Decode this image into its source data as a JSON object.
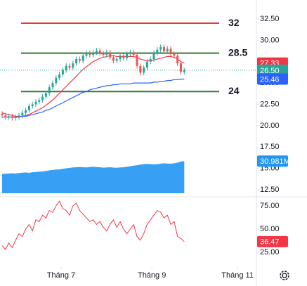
{
  "chart_data": [
    {
      "type": "candlestick",
      "xlim": [
        -0.625,
        75.4
      ],
      "ylim": [
        12.09,
        34.72
      ],
      "yticks": [
        {
          "value": 12.5,
          "label": "12.50"
        },
        {
          "value": 15,
          "label": "15.00"
        },
        {
          "value": 17.5,
          "label": "17.50"
        },
        {
          "value": 20,
          "label": "20.00"
        },
        {
          "value": 22.5,
          "label": "22.50"
        },
        {
          "value": 25,
          "label": "25.00"
        },
        {
          "value": 27.5,
          "label": "27.50"
        },
        {
          "value": 30,
          "label": "30.00"
        },
        {
          "value": 32.5,
          "label": "32.50"
        },
        {
          "value": 35,
          "label": "35.00"
        }
      ],
      "up_color": "#26a69a",
      "down_color": "#ef5350",
      "open": [
        21.4,
        21.2,
        21.0,
        21.1,
        20.9,
        21.0,
        21.2,
        21.5,
        21.8,
        22.3,
        22.5,
        22.8,
        23.0,
        23.4,
        23.8,
        24.5,
        25.0,
        25.6,
        26.0,
        26.5,
        27.0,
        26.8,
        27.3,
        27.8,
        27.6,
        28.2,
        28.5,
        28.3,
        28.6,
        28.8,
        28.5,
        28.3,
        28.6,
        28.0,
        27.6,
        27.8,
        28.2,
        27.9,
        28.4,
        28.6,
        28.3,
        27.0,
        26.2,
        26.8,
        27.5,
        27.8,
        28.5,
        28.9,
        29.2,
        28.7,
        29.0,
        28.4,
        28.2,
        27.3,
        26.3
      ],
      "high": [
        21.7,
        21.5,
        21.4,
        21.4,
        21.3,
        21.5,
        21.8,
        22.1,
        22.6,
        22.8,
        23.1,
        23.3,
        23.7,
        24.1,
        24.8,
        25.3,
        25.9,
        26.3,
        26.8,
        27.3,
        27.3,
        27.6,
        28.1,
        28.1,
        28.5,
        28.8,
        28.8,
        28.9,
        29.1,
        29.1,
        28.8,
        28.9,
        28.9,
        28.3,
        28.1,
        28.5,
        28.5,
        28.7,
        28.9,
        28.9,
        28.6,
        27.3,
        27.1,
        27.8,
        28.1,
        28.8,
        29.2,
        29.5,
        29.5,
        29.3,
        29.3,
        28.7,
        28.5,
        27.6,
        26.8
      ],
      "low": [
        20.9,
        20.7,
        20.7,
        20.6,
        20.6,
        20.7,
        20.9,
        21.2,
        21.5,
        22.0,
        22.2,
        22.5,
        22.7,
        23.1,
        23.5,
        24.2,
        24.7,
        25.3,
        25.7,
        26.2,
        26.5,
        26.5,
        27.0,
        27.3,
        27.3,
        27.9,
        28.0,
        28.0,
        28.3,
        28.2,
        28.0,
        28.0,
        27.7,
        27.3,
        27.3,
        27.5,
        27.6,
        27.6,
        28.1,
        28.0,
        26.7,
        25.9,
        25.9,
        26.5,
        27.2,
        27.5,
        28.2,
        28.6,
        28.4,
        28.4,
        28.1,
        27.9,
        27.0,
        26.0,
        26.0
      ],
      "close": [
        21.2,
        21.0,
        21.1,
        20.9,
        21.0,
        21.2,
        21.5,
        21.8,
        22.3,
        22.5,
        22.8,
        23.0,
        23.4,
        23.8,
        24.5,
        25.0,
        25.6,
        26.0,
        26.5,
        27.0,
        26.8,
        27.3,
        27.8,
        27.6,
        28.2,
        28.5,
        28.3,
        28.6,
        28.8,
        28.5,
        28.3,
        28.6,
        28.0,
        27.6,
        27.8,
        28.2,
        27.9,
        28.4,
        28.6,
        28.3,
        27.0,
        26.2,
        26.8,
        27.5,
        27.8,
        28.5,
        28.9,
        29.2,
        28.7,
        29.0,
        28.4,
        28.2,
        27.3,
        26.3,
        26.5
      ],
      "close_label": "26.50",
      "overlays": [
        {
          "color": "#f23645",
          "values": [
            21.5,
            21.4,
            21.3,
            21.2,
            21.1,
            21.1,
            21.1,
            21.2,
            21.3,
            21.5,
            21.7,
            21.9,
            22.1,
            22.4,
            22.7,
            23.0,
            23.4,
            23.8,
            24.2,
            24.6,
            25.0,
            25.4,
            25.8,
            26.2,
            26.6,
            26.9,
            27.2,
            27.5,
            27.7,
            27.9,
            28.0,
            28.1,
            28.2,
            28.2,
            28.1,
            28.1,
            28.1,
            28.1,
            28.1,
            28.1,
            28.0,
            27.8,
            27.7,
            27.6,
            27.6,
            27.7,
            27.8,
            27.9,
            28.0,
            28.1,
            28.1,
            28.0,
            27.8,
            27.5,
            27.33
          ]
        },
        {
          "color": "#2962ff",
          "values": [
            21.0,
            21.0,
            21.0,
            21.0,
            21.0,
            21.0,
            21.1,
            21.1,
            21.2,
            21.3,
            21.4,
            21.5,
            21.6,
            21.8,
            21.9,
            22.1,
            22.3,
            22.5,
            22.7,
            22.9,
            23.1,
            23.3,
            23.5,
            23.7,
            23.9,
            24.0,
            24.2,
            24.3,
            24.4,
            24.5,
            24.6,
            24.7,
            24.7,
            24.8,
            24.8,
            24.9,
            24.9,
            24.9,
            24.9,
            25.0,
            25.0,
            25.0,
            25.0,
            25.0,
            25.0,
            25.1,
            25.1,
            25.2,
            25.2,
            25.3,
            25.3,
            25.4,
            25.4,
            25.45,
            25.46
          ]
        }
      ],
      "volume": {
        "color": "#2196f3",
        "ylim": [
          0,
          186000000
        ],
        "value_label": "30.981M",
        "values": [
          18600000,
          18800000,
          19000000,
          19200000,
          19000000,
          19500000,
          19800000,
          20000000,
          19600000,
          20200000,
          20500000,
          20800000,
          21000000,
          21500000,
          22000000,
          22400000,
          22800000,
          23000000,
          23500000,
          24000000,
          24400000,
          24800000,
          25000000,
          25300000,
          25000000,
          24800000,
          25200000,
          25500000,
          25300000,
          25000000,
          24600000,
          24800000,
          25000000,
          24700000,
          24500000,
          24800000,
          25000000,
          25600000,
          26000000,
          26500000,
          27000000,
          27500000,
          28000000,
          28200000,
          28000000,
          27800000,
          28000000,
          28500000,
          28800000,
          28600000,
          28500000,
          28800000,
          29500000,
          30500000,
          30981000
        ]
      },
      "levels": [
        {
          "value": 32,
          "color": "#e53935"
        },
        {
          "value": 28.5,
          "color": "#2e7d32"
        },
        {
          "value": 24,
          "color": "#2e7d32"
        }
      ]
    },
    {
      "type": "line",
      "xlim": [
        -0.625,
        75.4
      ],
      "xticks": [
        {
          "value": 17.5,
          "label": "Tháng 7"
        },
        {
          "value": 44.4,
          "label": "Tháng 9"
        },
        {
          "value": 69.8,
          "label": "Tháng 11"
        }
      ],
      "ylim": [
        10.6,
        83.3
      ],
      "yticks": [
        {
          "value": 25,
          "label": "25.00"
        },
        {
          "value": 50,
          "label": "50.00"
        },
        {
          "value": 75,
          "label": "75.00"
        }
      ],
      "color": "#f23645",
      "values": [
        32,
        28,
        35,
        30,
        38,
        45,
        42,
        50,
        55,
        48,
        60,
        58,
        65,
        62,
        70,
        68,
        75,
        80,
        72,
        70,
        65,
        75,
        78,
        70,
        66,
        62,
        58,
        60,
        55,
        58,
        52,
        48,
        55,
        60,
        52,
        58,
        50,
        45,
        50,
        55,
        42,
        38,
        45,
        55,
        60,
        65,
        70,
        68,
        62,
        65,
        55,
        58,
        42,
        40,
        36.47
      ]
    }
  ]
}
